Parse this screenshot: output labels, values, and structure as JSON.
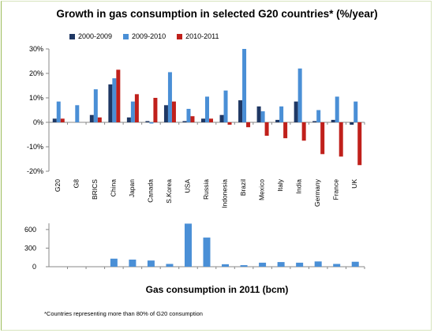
{
  "colors": {
    "s2000": "#1f3864",
    "s2009": "#4a8fd6",
    "s2010": "#c0201b",
    "bar2": "#4a8fd6",
    "axis": "#888888",
    "grid": "#d0d0d0"
  },
  "footnote": "*Countries representing more than 80% of G20 consumption",
  "chart_data": [
    {
      "type": "bar",
      "title": "Growth in gas consumption in selected G20 countries* (%/year)",
      "categories": [
        "G20",
        "G8",
        "BRICS",
        "China",
        "Japan",
        "Canada",
        "S.Korea",
        "USA",
        "Russia",
        "Indonesia",
        "Brazil",
        "Mexico",
        "Italy",
        "India",
        "Germany",
        "France",
        "UK"
      ],
      "series": [
        {
          "name": "2000-2009",
          "values": [
            1.5,
            0,
            3,
            15.5,
            2,
            0.5,
            7,
            0.5,
            1.5,
            3,
            9,
            6.5,
            1,
            8.5,
            0.5,
            1,
            -1
          ]
        },
        {
          "name": "2009-2010",
          "values": [
            8.5,
            7,
            13.5,
            18,
            8.5,
            -0.5,
            20.5,
            5.5,
            10.5,
            13,
            30,
            4.5,
            6.5,
            22,
            5,
            10.5,
            8.5
          ]
        },
        {
          "name": "2010-2011",
          "values": [
            1.5,
            0,
            2,
            21.5,
            11.5,
            10,
            8.5,
            2.5,
            1.5,
            -1,
            -2,
            -5.5,
            -6.5,
            -7.5,
            -13,
            -14,
            -17.5
          ]
        }
      ],
      "ylim": [
        -20,
        30
      ],
      "yticks": [
        -20,
        -10,
        0,
        10,
        20,
        30
      ],
      "ytick_labels": [
        "-20%",
        "-10%",
        "0%",
        "10%",
        "20%",
        "30%"
      ],
      "legend": "top",
      "grid": false
    },
    {
      "type": "bar",
      "title": "Gas consumption in 2011 (bcm)",
      "categories": [
        "G20",
        "G8",
        "BRICS",
        "China",
        "Japan",
        "Canada",
        "S.Korea",
        "USA",
        "Russia",
        "Indonesia",
        "Brazil",
        "Mexico",
        "Italy",
        "India",
        "Germany",
        "France",
        "UK"
      ],
      "values": [
        0,
        0,
        0,
        130,
        115,
        100,
        45,
        695,
        470,
        40,
        25,
        65,
        75,
        65,
        85,
        45,
        80
      ],
      "ylim": [
        0,
        700
      ],
      "yticks": [
        0,
        300,
        600
      ],
      "ytick_labels": [
        "0",
        "300",
        "600"
      ],
      "grid": false
    }
  ]
}
